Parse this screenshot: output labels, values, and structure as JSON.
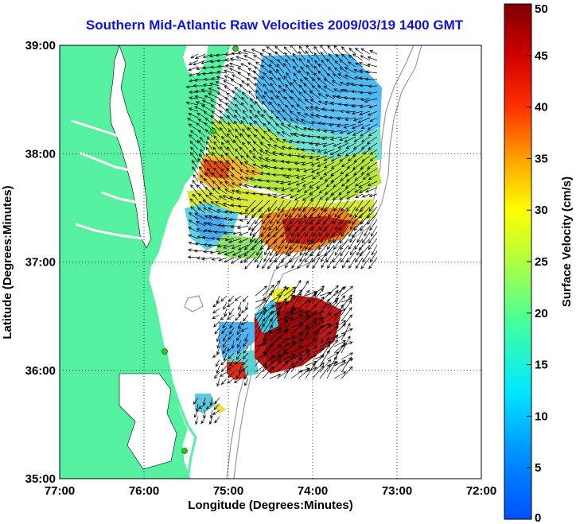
{
  "title": "Southern Mid-Atlantic Raw Velocities 2009/03/19 1400 GMT",
  "x_axis": {
    "label": "Longitude (Degrees:Minutes)",
    "ticks": [
      "77:00",
      "76:00",
      "75:00",
      "74:00",
      "73:00",
      "72:00"
    ]
  },
  "y_axis": {
    "label": "Latitude (Degrees:Minutes)",
    "ticks": [
      "39:00",
      "38:00",
      "37:00",
      "36:00",
      "35:00"
    ]
  },
  "colorbar": {
    "label": "Surface Velocity (cm/s)",
    "ticks": [
      "50",
      "45",
      "40",
      "35",
      "30",
      "25",
      "20",
      "15",
      "10",
      "5",
      "0"
    ],
    "range": [
      0,
      50
    ]
  },
  "colors": {
    "land": "#55f0a0",
    "ocean": "#ffffff",
    "title": "#1010e0",
    "bathymetry": "#999999"
  },
  "grid": "dotted",
  "extent": {
    "lon": [
      -77,
      -72
    ],
    "lat": [
      35,
      39
    ]
  }
}
